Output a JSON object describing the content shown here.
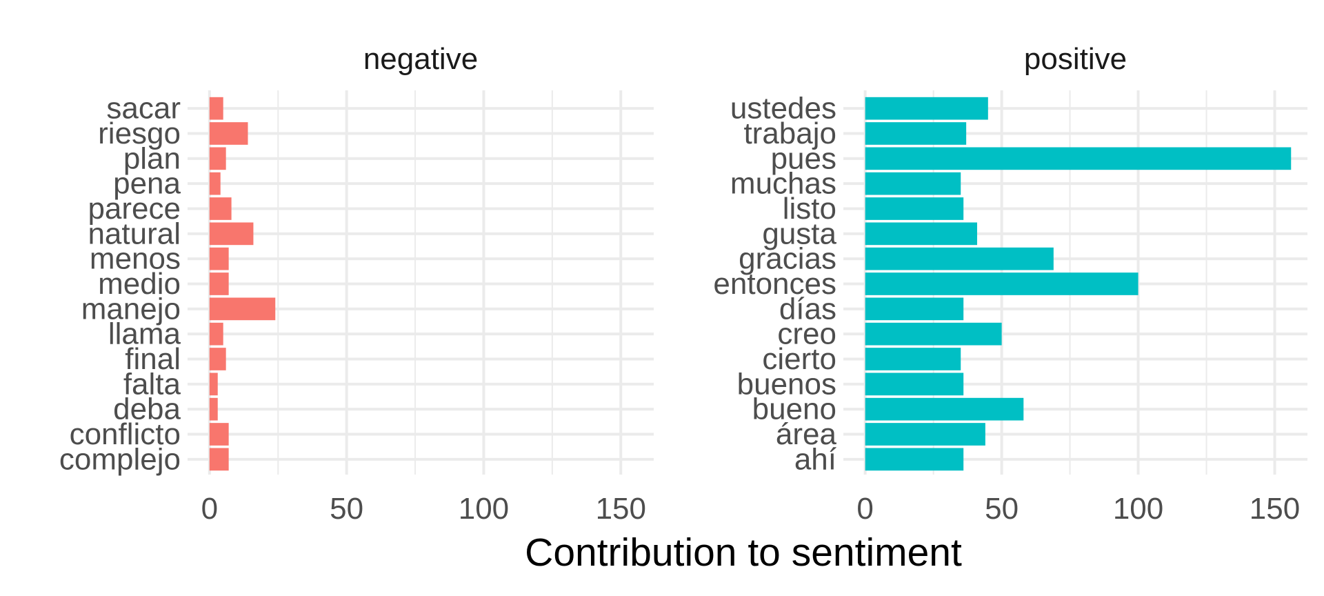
{
  "chart_data": {
    "type": "bar",
    "orientation": "horizontal",
    "xlabel": "Contribution to sentiment",
    "ylabel": "",
    "xlim": [
      0,
      160
    ],
    "x_ticks": [
      0,
      50,
      100,
      150
    ],
    "x_tick_labels": [
      "0",
      "50",
      "100",
      "150"
    ],
    "grid": true,
    "legend": "none",
    "panels": [
      {
        "name": "negative",
        "color": "#F8766D",
        "categories": [
          "sacar",
          "riesgo",
          "plan",
          "pena",
          "parece",
          "natural",
          "menos",
          "medio",
          "manejo",
          "llama",
          "final",
          "falta",
          "deba",
          "conflicto",
          "complejo"
        ],
        "values": [
          5,
          14,
          6,
          4,
          8,
          16,
          7,
          7,
          24,
          5,
          6,
          3,
          3,
          7,
          7
        ]
      },
      {
        "name": "positive",
        "color": "#00BFC4",
        "categories": [
          "ustedes",
          "trabajo",
          "pues",
          "muchas",
          "listo",
          "gusta",
          "gracias",
          "entonces",
          "días",
          "creo",
          "cierto",
          "buenos",
          "bueno",
          "área",
          "ahí"
        ],
        "values": [
          45,
          37,
          156,
          35,
          36,
          41,
          69,
          100,
          36,
          50,
          35,
          36,
          58,
          44,
          36
        ]
      }
    ]
  }
}
